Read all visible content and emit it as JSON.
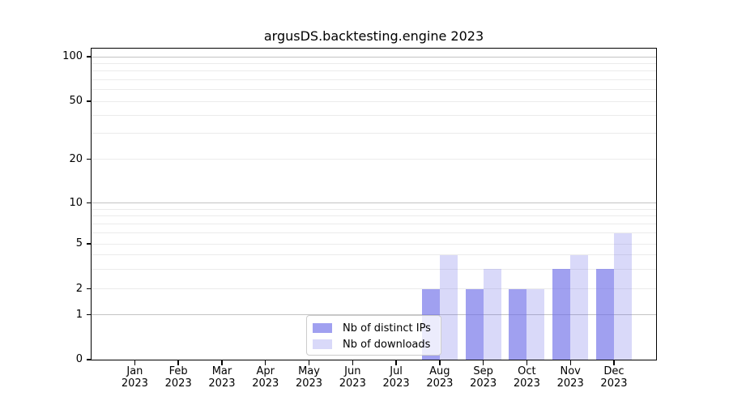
{
  "chart_data": {
    "type": "bar",
    "title": "argusDS.backtesting.engine 2023",
    "categories": [
      "Jan 2023",
      "Feb 2023",
      "Mar 2023",
      "Apr 2023",
      "May 2023",
      "Jun 2023",
      "Jul 2023",
      "Aug 2023",
      "Sep 2023",
      "Oct 2023",
      "Nov 2023",
      "Dec 2023"
    ],
    "series": [
      {
        "name": "Nb of distinct IPs",
        "color": "rgba(109,109,232,0.65)",
        "color_on_white": "#a2a2ef",
        "values": [
          0,
          0,
          0,
          0,
          0,
          0,
          0,
          2,
          2,
          2,
          3,
          3
        ]
      },
      {
        "name": "Nb of downloads",
        "color": "rgba(109,109,232,0.26)",
        "color_on_white": "#d9d9f8",
        "values": [
          0,
          0,
          0,
          0,
          0,
          0,
          0,
          4,
          3,
          2,
          4,
          6
        ]
      }
    ],
    "xlabel": "",
    "ylabel": "",
    "yaxis": {
      "scale": "symlog",
      "ticks": [
        0,
        1,
        2,
        5,
        10,
        20,
        50,
        100
      ],
      "major_gridlines": [
        1,
        10,
        100
      ],
      "minor_gridlines": [
        2,
        3,
        4,
        5,
        6,
        7,
        8,
        9,
        20,
        30,
        40,
        50,
        60,
        70,
        80,
        90
      ],
      "range_min": 0,
      "range_max_approx": 114
    },
    "grid": "horizontal",
    "legend_position": "lower center (inside plot)",
    "colors": {
      "background": "#ffffff",
      "axis": "#000000",
      "major_grid": "#c3c3c3",
      "minor_grid": "#ebebeb"
    }
  }
}
